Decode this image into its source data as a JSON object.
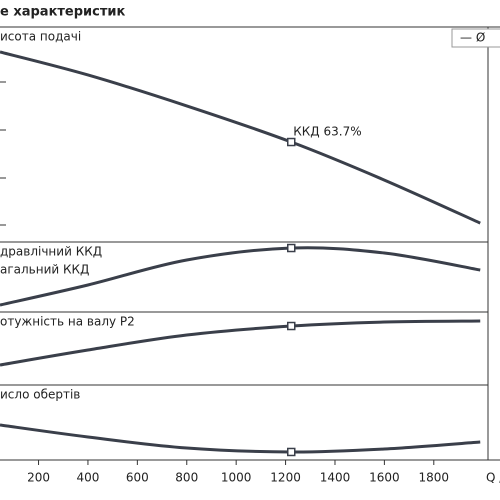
{
  "chart_data": {
    "type": "line",
    "title": "е характеристик",
    "legend": "— Ø",
    "x_label": "Q /",
    "xlim": [
      44,
      2068
    ],
    "xticks": [
      200,
      400,
      600,
      800,
      1000,
      1200,
      1400,
      1600,
      1800
    ],
    "x": [
      44,
      400,
      800,
      1223,
      1600,
      1988
    ],
    "marker_index": 3,
    "annotation": "ККД   63.7%",
    "color": "#3a3f4a",
    "panels": [
      {
        "labels": [
          "исота подачі"
        ],
        "ylim": [
          0,
          100
        ],
        "values": [
          88.4,
          77.7,
          63.3,
          46.5,
          28.8,
          8.8
        ]
      },
      {
        "labels": [
          "дравлічний ККД",
          "агальний ККД"
        ],
        "ylim": [
          0,
          100
        ],
        "values": [
          10,
          38.6,
          74.3,
          91.4,
          84.3,
          60
        ]
      },
      {
        "labels": [
          "отужність на валу  P2"
        ],
        "ylim": [
          0,
          100
        ],
        "values": [
          27.4,
          47.9,
          68.5,
          80.8,
          86.3,
          87.7
        ]
      },
      {
        "labels": [
          "исло обертів"
        ],
        "ylim": [
          0,
          100
        ],
        "values": [
          46.7,
          30.7,
          16,
          10.7,
          14.7,
          24
        ]
      }
    ]
  }
}
